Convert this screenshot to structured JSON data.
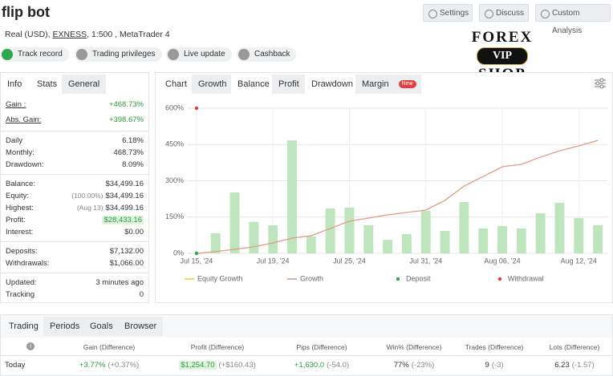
{
  "header": {
    "title": "flip bot",
    "account": [
      "Real (USD),",
      "EXNESS",
      ", 1:500 , MetaTrader 4"
    ],
    "buttons": [
      "Settings",
      "Discuss",
      "Custom Analysis"
    ],
    "badges": [
      "Track record",
      "Trading privileges",
      "Live update",
      "Cashback"
    ],
    "logo": [
      "FOREX",
      "VIP",
      "SHOP"
    ]
  },
  "stats": {
    "tabs": [
      "Info",
      "Stats",
      "General"
    ],
    "groups": [
      [
        {
          "label": "Gain :",
          "value": "+468.73%"
        },
        {
          "label": "Abs. Gain:",
          "value": "+398.67%"
        }
      ],
      [
        {
          "label": "Daily",
          "value": "6.18%"
        },
        {
          "label": "Monthly:",
          "value": "468.73%"
        },
        {
          "label": "Drawdown:",
          "value": "8.09%"
        }
      ],
      [
        {
          "label": "Balance:",
          "value": "$34,499.16"
        },
        {
          "label": "Equity:",
          "note": "(100.00%)",
          "value": "$34,499.16"
        },
        {
          "label": "Highest:",
          "note": "(Aug 13)",
          "value": "$34,499.16"
        },
        {
          "label": "Profit:",
          "value": "$28,433.16"
        },
        {
          "label": "Interest:",
          "value": "$0.00"
        }
      ],
      [
        {
          "label": "Deposits:",
          "value": "$7,132.00"
        },
        {
          "label": "Withdrawals:",
          "value": "$1,066.00"
        }
      ],
      [
        {
          "label": "Updated:",
          "value": "3 minutes ago"
        },
        {
          "label": "Tracking",
          "value": "0"
        }
      ]
    ]
  },
  "chart_tabs": [
    "Chart",
    "Growth",
    "Balance",
    "Profit",
    "Drawdown",
    "Margin"
  ],
  "new_badge": "New",
  "chart_data": {
    "type": "bar_line",
    "categories": [
      "Jul 15, '24",
      null,
      null,
      null,
      "Jul 19, '24",
      null,
      null,
      null,
      "Jul 25, '24",
      null,
      null,
      null,
      "Jul 31, '24",
      null,
      null,
      null,
      "Aug 06, '24",
      null,
      null,
      null,
      "Aug 12, '24",
      null
    ],
    "bars": {
      "color": "#bfe5bf",
      "values": [
        0,
        83,
        252,
        130,
        116,
        467,
        70,
        186,
        189,
        116,
        56,
        80,
        176,
        93,
        212,
        103,
        113,
        103,
        166,
        209,
        146,
        116
      ]
    },
    "line": {
      "color": "#e39a82",
      "values": [
        0,
        7,
        17,
        27,
        43,
        63,
        73,
        103,
        133,
        146,
        159,
        169,
        179,
        219,
        278,
        318,
        358,
        368,
        398,
        424,
        444,
        467
      ]
    },
    "points": [
      {
        "color": "#2ea84f",
        "values": [
          0,
          null,
          null,
          null,
          null,
          null,
          null,
          null,
          null,
          null,
          null,
          null,
          null,
          null,
          null,
          null,
          null,
          null,
          null,
          null,
          null,
          null
        ]
      },
      {
        "color": "#e04040",
        "values": [
          600,
          null,
          null,
          null,
          null,
          null,
          null,
          null,
          null,
          null,
          null,
          null,
          null,
          null,
          null,
          null,
          null,
          null,
          null,
          null,
          null,
          null
        ]
      }
    ],
    "legend": [
      {
        "name": "Equity Growth",
        "color": "#e8c840",
        "marker": "line"
      },
      {
        "name": "Growth",
        "color": "#c89a90",
        "marker": "line"
      },
      {
        "name": "Deposit",
        "color": "#2ea84f",
        "marker": "dot"
      },
      {
        "name": "Withdrawal",
        "color": "#e04040",
        "marker": "dot"
      }
    ],
    "ylim": [
      0,
      600
    ],
    "yticks": [
      {
        "value": 0,
        "label": "0%"
      },
      {
        "value": 150,
        "label": "150%"
      },
      {
        "value": 300,
        "label": "300%"
      },
      {
        "value": 450,
        "label": "450%"
      },
      {
        "value": 600,
        "label": "600%"
      }
    ],
    "grid": true
  },
  "bottom_tabs": [
    "Trading",
    "Periods",
    "Goals",
    "Browser"
  ],
  "table": {
    "headers": [
      "Gain (Difference)",
      "Profit (Difference)",
      "Pips (Difference)",
      "Win% (Difference)",
      "Trades (Difference)",
      "Lots (Difference)"
    ],
    "rows": [
      {
        "label": "Today",
        "cells": [
          {
            "value": "+3.77%",
            "diff": "(+0.37%)"
          },
          {
            "value": "$1,254.70",
            "diff": "(+$160.43)"
          },
          {
            "value": "+1,630.0",
            "diff": "(-54.0)"
          },
          {
            "value": "77%",
            "diff": "(-23%)"
          },
          {
            "value": "9",
            "diff": "(-3)"
          },
          {
            "value": "6.23",
            "diff": "(-1.57)"
          }
        ]
      }
    ]
  }
}
